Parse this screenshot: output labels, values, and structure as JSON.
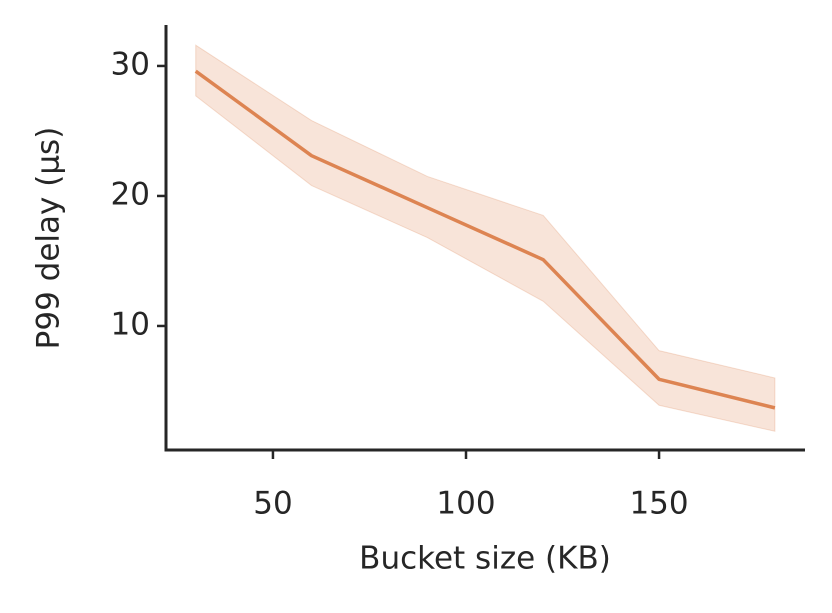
{
  "chart_data": {
    "type": "line",
    "x_label": "Bucket size (KB)",
    "y_label": "P99 delay (µs)",
    "x": [
      30,
      60,
      90,
      120,
      150,
      180
    ],
    "series": [
      {
        "color": "#dd8452",
        "values": [
          29.6,
          23.1,
          19.1,
          15.1,
          5.9,
          3.7
        ],
        "lower": [
          27.7,
          20.8,
          16.8,
          11.9,
          3.9,
          1.9
        ],
        "upper": [
          31.6,
          25.8,
          21.5,
          18.5,
          8.1,
          6.0
        ]
      }
    ],
    "xlim": [
      22.3,
      187.8
    ],
    "xticks": [
      50,
      100,
      150
    ],
    "ylim": [
      0.46,
      33.15
    ],
    "yticks": [
      10,
      20,
      30
    ],
    "grid": false
  }
}
